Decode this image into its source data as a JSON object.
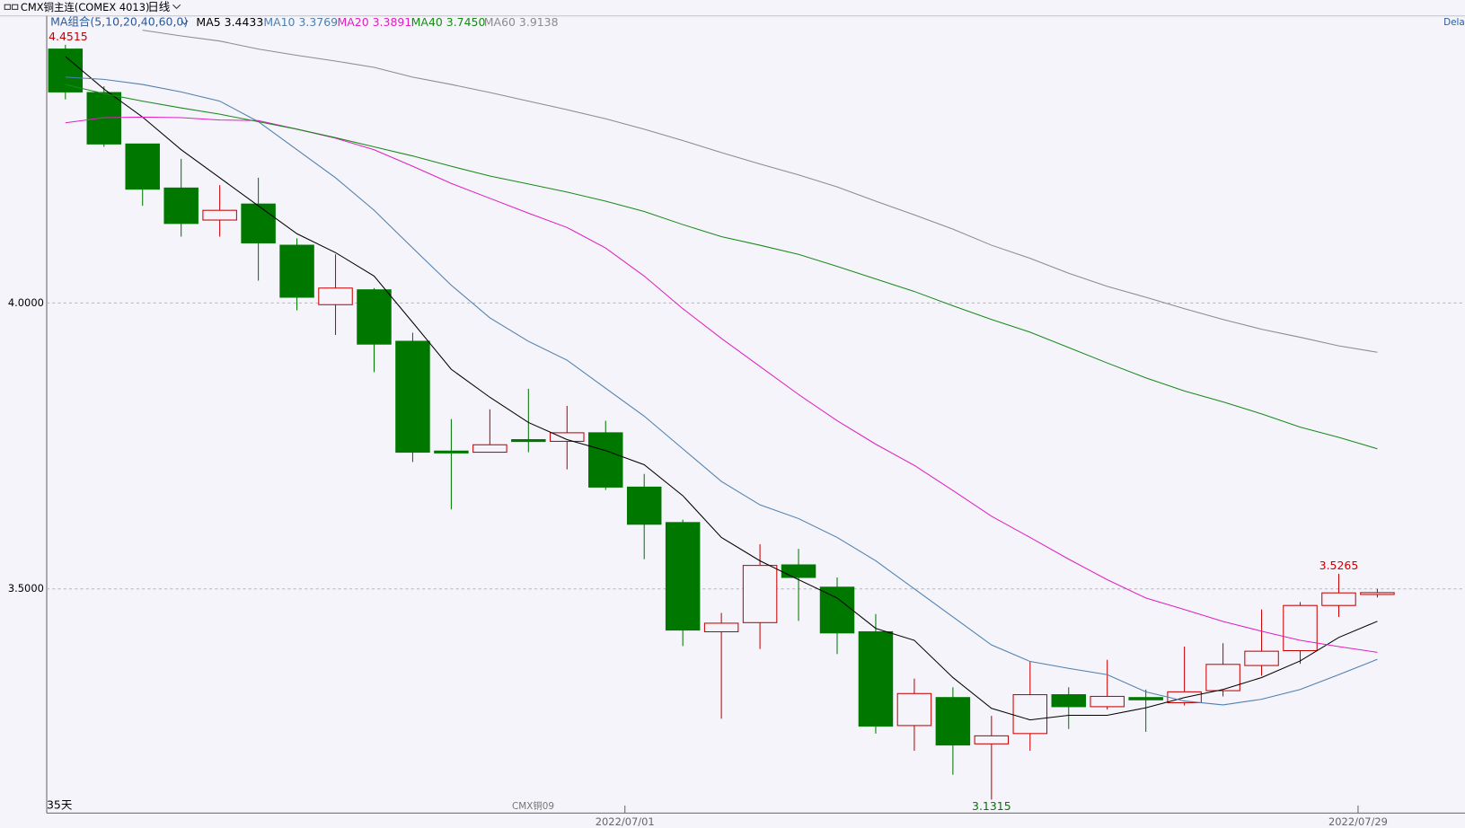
{
  "header": {
    "instrument": "CMX铜主连(COMEX 4013)",
    "period": "日线",
    "indicator": "MA组合(5,10,20,40,60,0)"
  },
  "chart_data": {
    "type": "candlestick",
    "categories": [
      null,
      null,
      null,
      null,
      null,
      null,
      null,
      null,
      null,
      null,
      null,
      null,
      null,
      null,
      null,
      "2022/07/01",
      null,
      null,
      null,
      null,
      null,
      null,
      null,
      null,
      null,
      null,
      null,
      null,
      null,
      null,
      null,
      null,
      null,
      null,
      "2022/07/29"
    ],
    "open": [
      4.444,
      4.368,
      4.278,
      4.201,
      4.145,
      4.173,
      4.101,
      3.997,
      4.023,
      3.933,
      3.741,
      3.739,
      3.761,
      3.758,
      3.773,
      3.678,
      3.616,
      3.425,
      3.441,
      3.542,
      3.503,
      3.425,
      3.261,
      3.31,
      3.229,
      3.247,
      3.315,
      3.294,
      3.31,
      3.301,
      3.322,
      3.366,
      3.392,
      3.471,
      3.492
    ],
    "high": [
      4.4515,
      4.379,
      4.278,
      4.252,
      4.206,
      4.219,
      4.113,
      4.085,
      4.026,
      3.948,
      3.797,
      3.814,
      3.85,
      3.82,
      3.794,
      3.701,
      3.621,
      3.458,
      3.578,
      3.57,
      3.52,
      3.456,
      3.343,
      3.328,
      3.278,
      3.373,
      3.328,
      3.376,
      3.324,
      3.399,
      3.405,
      3.464,
      3.477,
      3.5265,
      3.5
    ],
    "low": [
      4.356,
      4.273,
      4.17,
      4.116,
      4.116,
      4.039,
      3.987,
      3.944,
      3.879,
      3.722,
      3.639,
      3.739,
      3.739,
      3.709,
      3.673,
      3.552,
      3.4,
      3.273,
      3.395,
      3.444,
      3.386,
      3.247,
      3.217,
      3.175,
      3.1315,
      3.217,
      3.255,
      3.289,
      3.25,
      3.296,
      3.312,
      3.348,
      3.369,
      3.451,
      3.485
    ],
    "close": [
      4.369,
      4.278,
      4.199,
      4.139,
      4.162,
      4.105,
      4.01,
      4.026,
      3.928,
      3.739,
      3.739,
      3.752,
      3.758,
      3.773,
      3.678,
      3.613,
      3.428,
      3.44,
      3.541,
      3.52,
      3.423,
      3.26,
      3.317,
      3.227,
      3.243,
      3.315,
      3.294,
      3.312,
      3.306,
      3.32,
      3.368,
      3.391,
      3.471,
      3.493,
      3.4935
    ],
    "up_color": "#c80000",
    "down_color": "#007800",
    "series": [
      {
        "name": "MA5",
        "color": "#000000",
        "value_label": "3.4433",
        "values": [
          4.431,
          4.374,
          4.325,
          4.268,
          4.219,
          4.17,
          4.121,
          4.088,
          4.047,
          3.966,
          3.884,
          3.835,
          3.791,
          3.761,
          3.742,
          3.717,
          3.663,
          3.59,
          3.549,
          3.516,
          3.484,
          3.431,
          3.41,
          3.345,
          3.291,
          3.271,
          3.279,
          3.279,
          3.292,
          3.31,
          3.324,
          3.345,
          3.374,
          3.415,
          3.4433
        ]
      },
      {
        "name": "MA10",
        "color": "#4f7fae",
        "value_label": "3.3769",
        "values": [
          4.395,
          4.391,
          4.382,
          4.369,
          4.353,
          4.317,
          4.268,
          4.219,
          4.162,
          4.096,
          4.031,
          3.974,
          3.933,
          3.9,
          3.851,
          3.802,
          3.745,
          3.688,
          3.647,
          3.623,
          3.59,
          3.549,
          3.5,
          3.451,
          3.402,
          3.373,
          3.361,
          3.35,
          3.32,
          3.304,
          3.297,
          3.307,
          3.324,
          3.35,
          3.3769
        ]
      },
      {
        "name": "MA20",
        "color": "#e020c0",
        "value_label": "3.3891",
        "values": [
          4.315,
          4.324,
          4.325,
          4.324,
          4.32,
          4.319,
          4.304,
          4.288,
          4.268,
          4.239,
          4.209,
          4.183,
          4.157,
          4.132,
          4.096,
          4.047,
          3.99,
          3.938,
          3.889,
          3.84,
          3.794,
          3.753,
          3.716,
          3.672,
          3.627,
          3.59,
          3.552,
          3.516,
          3.484,
          3.464,
          3.443,
          3.426,
          3.41,
          3.399,
          3.3891
        ]
      },
      {
        "name": "MA40",
        "color": "#1a8a1a",
        "value_label": "3.7450",
        "values": [
          4.382,
          4.366,
          4.353,
          4.341,
          4.33,
          4.317,
          4.304,
          4.289,
          4.273,
          4.257,
          4.239,
          4.222,
          4.208,
          4.194,
          4.178,
          4.16,
          4.137,
          4.116,
          4.101,
          4.085,
          4.064,
          4.042,
          4.02,
          3.995,
          3.971,
          3.949,
          3.922,
          3.895,
          3.869,
          3.846,
          3.827,
          3.806,
          3.783,
          3.765,
          3.745
        ]
      },
      {
        "name": "MA60",
        "color": "#8c8c8c",
        "value_label": "3.9138",
        "values": [
          null,
          null,
          4.477,
          4.467,
          4.458,
          4.444,
          4.433,
          4.423,
          4.412,
          4.395,
          4.382,
          4.368,
          4.353,
          4.338,
          4.322,
          4.304,
          4.284,
          4.263,
          4.243,
          4.224,
          4.203,
          4.178,
          4.154,
          4.129,
          4.101,
          4.078,
          4.052,
          4.029,
          4.01,
          3.99,
          3.971,
          3.954,
          3.94,
          3.925,
          3.9138
        ]
      }
    ],
    "ylim": [
      3.108,
      4.502
    ],
    "yticks": [
      {
        "value": 4,
        "label": "4.0000"
      },
      {
        "value": 3.5,
        "label": "3.5000"
      }
    ],
    "grid": true,
    "annotations": {
      "period_count": "35天",
      "contract": "CMX铜09",
      "right_edge": "Dela"
    }
  }
}
